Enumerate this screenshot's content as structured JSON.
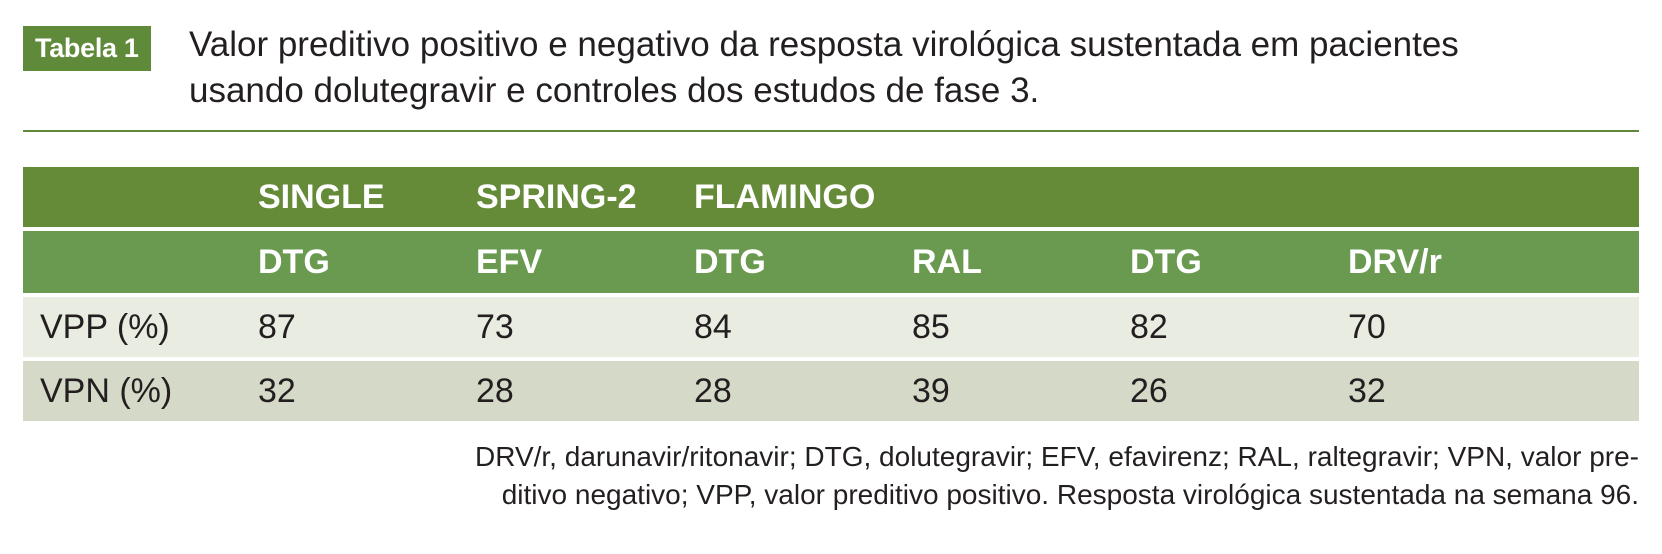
{
  "header": {
    "badge": "Tabela 1",
    "title_line1": "Valor preditivo positivo e negativo da resposta virológica sustentada em pacientes",
    "title_line2": "usando dolutegravir e controles dos estudos de fase 3."
  },
  "table": {
    "studies": [
      "SINGLE",
      "SPRING-2",
      "FLAMINGO"
    ],
    "drugs": [
      "DTG",
      "EFV",
      "DTG",
      "RAL",
      "DTG",
      "DRV/r"
    ],
    "rows": [
      {
        "label": "VPP (%)",
        "values": [
          "87",
          "73",
          "84",
          "85",
          "82",
          "70"
        ]
      },
      {
        "label": "VPN (%)",
        "values": [
          "32",
          "28",
          "28",
          "39",
          "26",
          "32"
        ]
      }
    ]
  },
  "footnote": {
    "line1": "DRV/r, darunavir/ritonavir; DTG, dolutegravir; EFV, efavirenz; RAL, raltegravir; VPN, valor pre-",
    "line2": "ditivo negativo; VPP, valor preditivo positivo. Resposta virológica sustentada na semana 96."
  },
  "colors": {
    "badge": "#5f8a3a",
    "study_header": "#658b38",
    "drug_header": "#6a9a50",
    "row_light": "#e8ece1",
    "row_dark": "#d5dac8"
  }
}
